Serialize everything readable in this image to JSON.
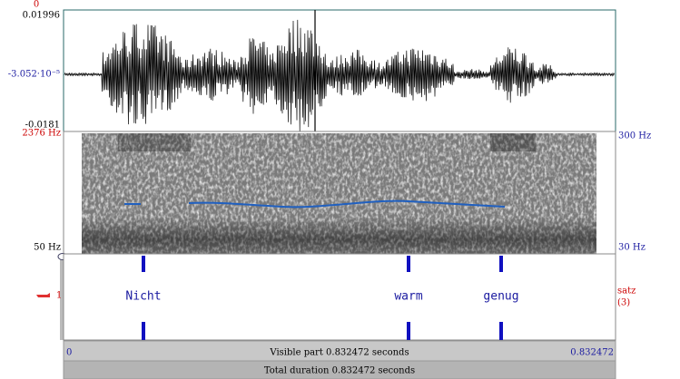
{
  "waveform": {
    "time_marker": "0",
    "max": "0.01996",
    "mid": "-3.052·10⁻⁵",
    "min": "-0.0181"
  },
  "spectrogram": {
    "freq_max": "2376 Hz",
    "freq_min": "50 Hz",
    "pitch_max": "300 Hz",
    "pitch_min": "30 Hz"
  },
  "tier": {
    "number": "1",
    "name": "satz",
    "count": "(3)",
    "labels": [
      "Nicht",
      "warm",
      "genug"
    ]
  },
  "footer": {
    "start": "0",
    "visible": "Visible part 0.832472 seconds",
    "end": "0.832472",
    "total": "Total duration 0.832472 seconds"
  }
}
